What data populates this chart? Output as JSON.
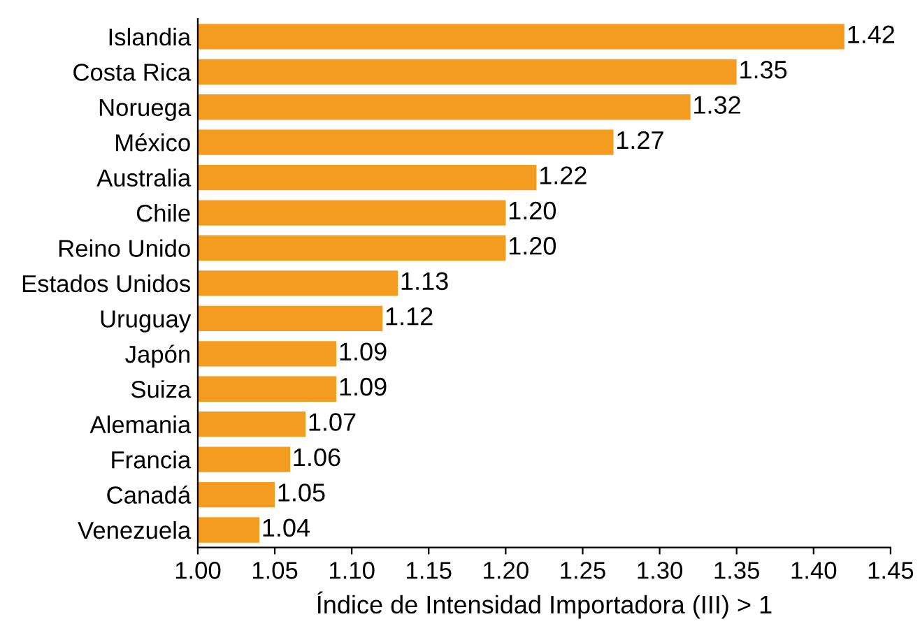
{
  "chart_data": {
    "type": "bar",
    "orientation": "horizontal",
    "xlabel": "Índice de Intensidad Importadora (III) > 1",
    "categories": [
      "Islandia",
      "Costa Rica",
      "Noruega",
      "México",
      "Australia",
      "Chile",
      "Reino Unido",
      "Estados Unidos",
      "Uruguay",
      "Japón",
      "Suiza",
      "Alemania",
      "Francia",
      "Canadá",
      "Venezuela"
    ],
    "values": [
      1.42,
      1.35,
      1.32,
      1.27,
      1.22,
      1.2,
      1.2,
      1.13,
      1.12,
      1.09,
      1.09,
      1.07,
      1.06,
      1.05,
      1.04
    ],
    "value_labels": [
      "1.42",
      "1.35",
      "1.32",
      "1.27",
      "1.22",
      "1.20",
      "1.20",
      "1.13",
      "1.12",
      "1.09",
      "1.09",
      "1.07",
      "1.06",
      "1.05",
      "1.04"
    ],
    "color": "#f39c1f",
    "xlim": [
      1.0,
      1.45
    ],
    "xticks": [
      {
        "value": 1.0,
        "label": "1.00"
      },
      {
        "value": 1.05,
        "label": "1.05"
      },
      {
        "value": 1.1,
        "label": "1.10"
      },
      {
        "value": 1.15,
        "label": "1.15"
      },
      {
        "value": 1.2,
        "label": "1.20"
      },
      {
        "value": 1.25,
        "label": "1.25"
      },
      {
        "value": 1.3,
        "label": "1.30"
      },
      {
        "value": 1.35,
        "label": "1.35"
      },
      {
        "value": 1.4,
        "label": "1.40"
      },
      {
        "value": 1.45,
        "label": "1.45"
      }
    ],
    "grid": false,
    "legend": false
  }
}
